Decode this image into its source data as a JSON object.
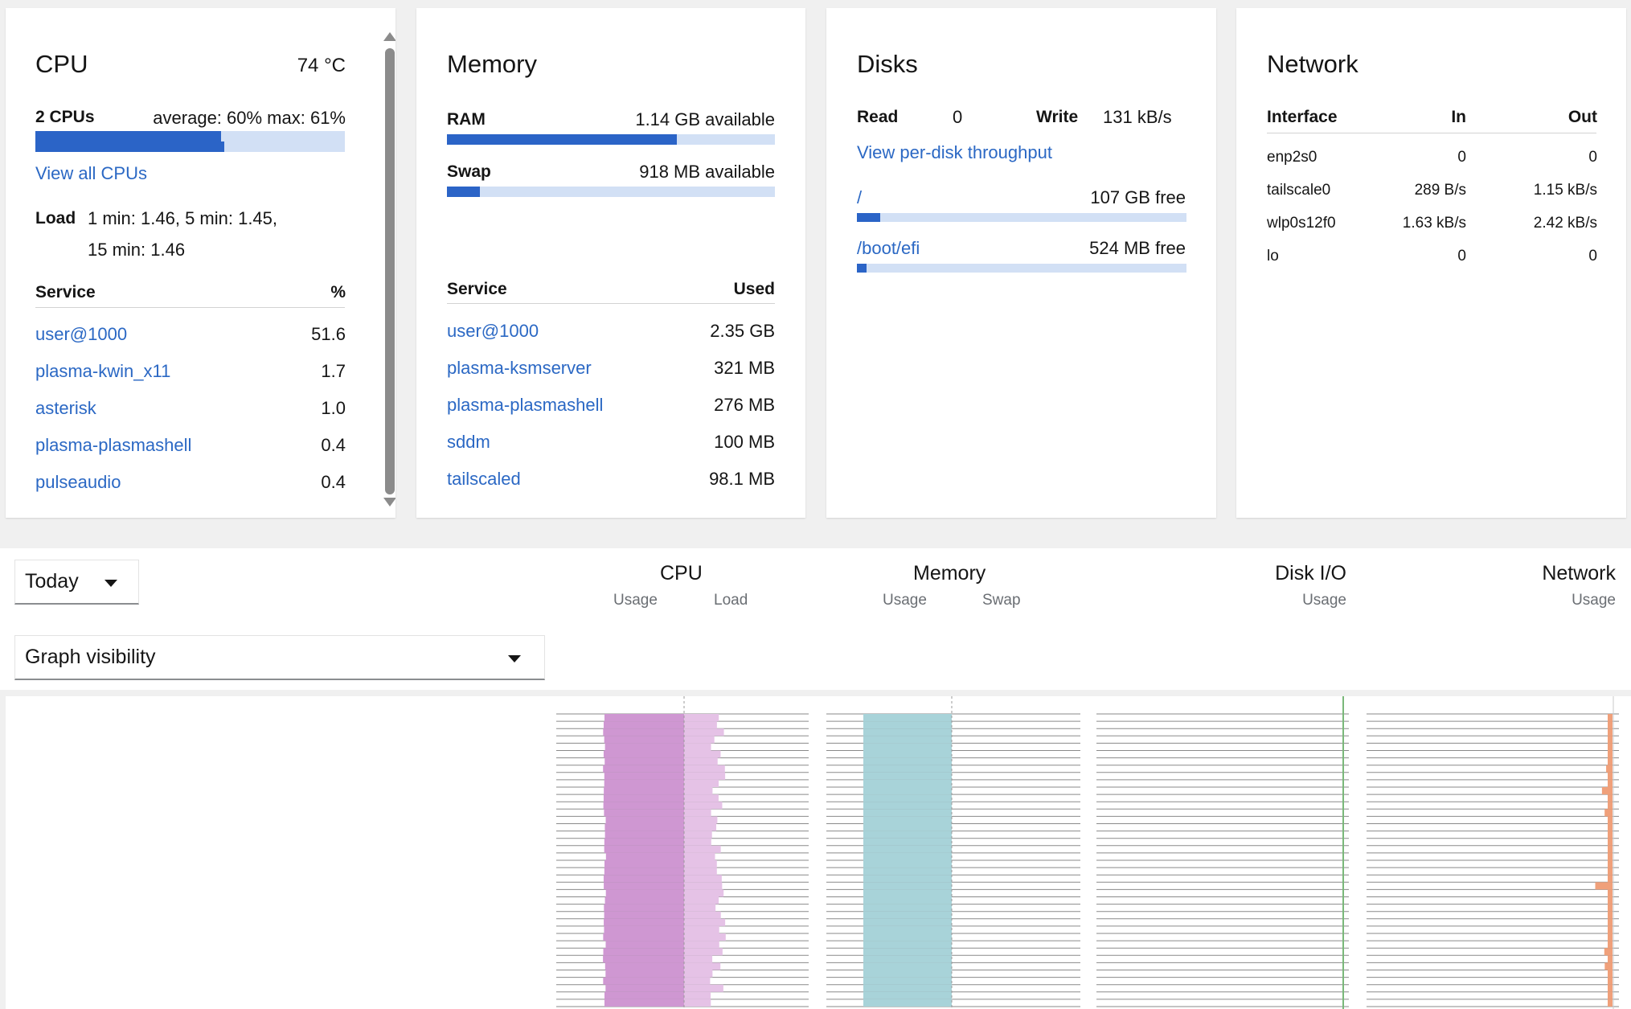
{
  "cpu": {
    "title": "CPU",
    "temperature": "74 °C",
    "count_label": "2 CPUs",
    "summary": "average: 60% max: 61%",
    "bars": [
      0.6,
      0.61
    ],
    "view_all": "View all CPUs",
    "load_label": "Load",
    "load_line1": "1 min: 1.46, 5 min: 1.45,",
    "load_line2": "15 min: 1.46",
    "service_header": "Service",
    "percent_header": "%",
    "services": [
      {
        "name": "user@1000",
        "value": "51.6"
      },
      {
        "name": "plasma-kwin_x11",
        "value": "1.7"
      },
      {
        "name": "asterisk",
        "value": "1.0"
      },
      {
        "name": "plasma-plasmashell",
        "value": "0.4"
      },
      {
        "name": "pulseaudio",
        "value": "0.4"
      }
    ]
  },
  "memory": {
    "title": "Memory",
    "ram_label": "RAM",
    "ram_value": "1.14 GB available",
    "ram_used_fraction": 0.7,
    "swap_label": "Swap",
    "swap_value": "918 MB available",
    "swap_used_fraction": 0.1,
    "service_header": "Service",
    "used_header": "Used",
    "services": [
      {
        "name": "user@1000",
        "value": "2.35 GB"
      },
      {
        "name": "plasma-ksmserver",
        "value": "321 MB"
      },
      {
        "name": "plasma-plasmashell",
        "value": "276 MB"
      },
      {
        "name": "sddm",
        "value": "100 MB"
      },
      {
        "name": "tailscaled",
        "value": "98.1 MB"
      }
    ]
  },
  "disks": {
    "title": "Disks",
    "read_label": "Read",
    "read_value": "0",
    "write_label": "Write",
    "write_value": "131 kB/s",
    "per_disk_link": "View per-disk throughput",
    "mounts": [
      {
        "path": "/",
        "free": "107 GB free",
        "used_fraction": 0.07
      },
      {
        "path": "/boot/efi",
        "free": "524 MB free",
        "used_fraction": 0.03
      }
    ]
  },
  "network": {
    "title": "Network",
    "interface_header": "Interface",
    "in_header": "In",
    "out_header": "Out",
    "interfaces": [
      {
        "name": "enp2s0",
        "in": "0",
        "out": "0"
      },
      {
        "name": "tailscale0",
        "in": "289 B/s",
        "out": "1.15 kB/s"
      },
      {
        "name": "wlp0s12f0",
        "in": "1.63 kB/s",
        "out": "2.42 kB/s"
      },
      {
        "name": "lo",
        "in": "0",
        "out": "0"
      }
    ]
  },
  "toolbar": {
    "range_select": "Today",
    "graph_visibility": "Graph visibility",
    "columns": {
      "cpu": {
        "title": "CPU",
        "sub1": "Usage",
        "sub2": "Load"
      },
      "memory": {
        "title": "Memory",
        "sub1": "Usage",
        "sub2": "Swap"
      },
      "disk": {
        "title": "Disk I/O",
        "sub1": "Usage"
      },
      "network": {
        "title": "Network",
        "sub1": "Usage"
      }
    }
  },
  "graph_colors": {
    "cpu_usage": "#cf97d2",
    "cpu_load": "#e5c2e6",
    "memory_usage": "#a8d3d9",
    "disk_line": "#7ab87a",
    "network_usage": "#f0a07a"
  }
}
